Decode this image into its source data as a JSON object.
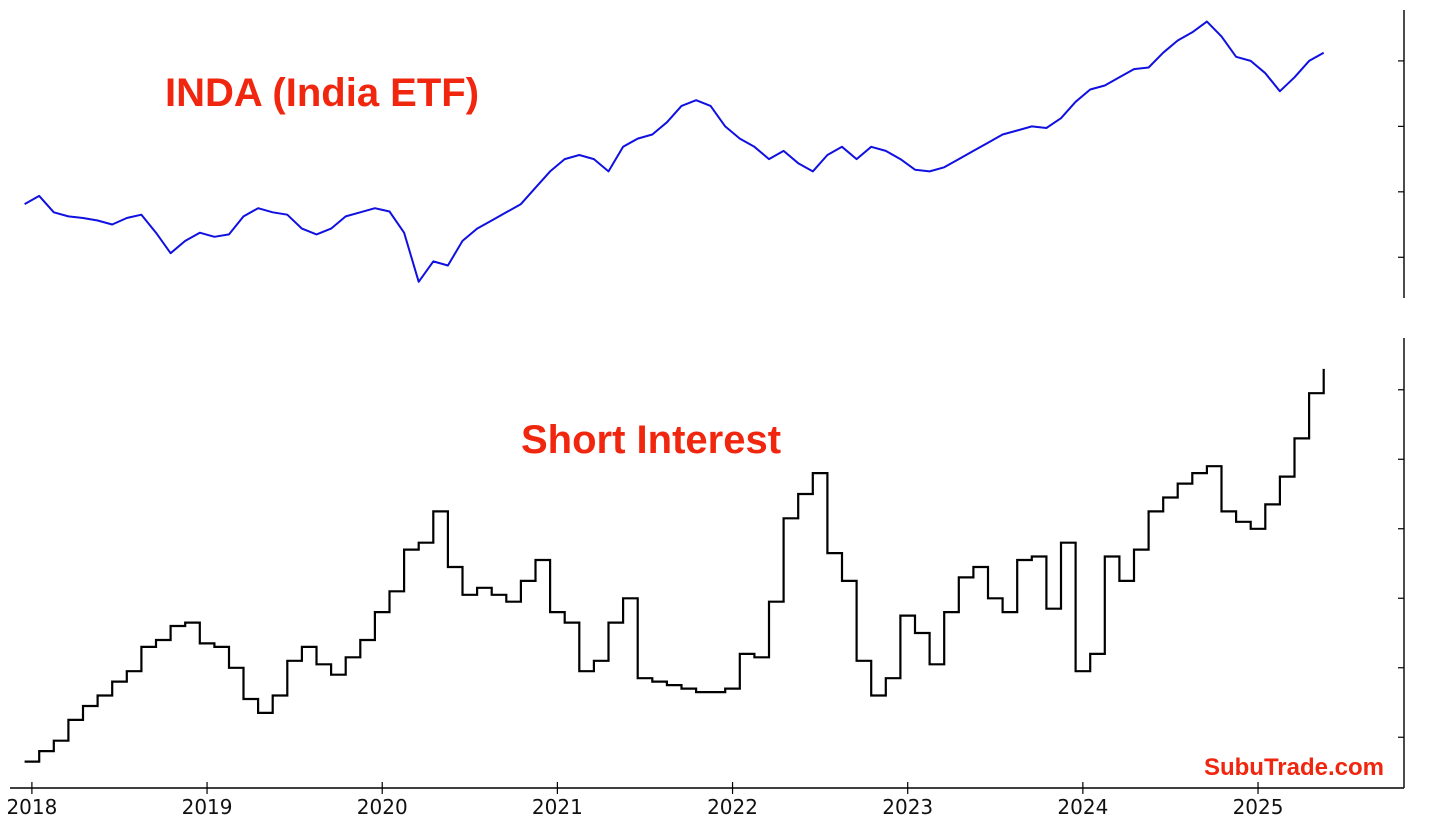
{
  "chart_data": [
    {
      "type": "line",
      "title": "INDA (India ETF)",
      "color": "#1010e0",
      "x": [
        "2017-12",
        "2018-01",
        "2018-02",
        "2018-03",
        "2018-04",
        "2018-05",
        "2018-06",
        "2018-07",
        "2018-08",
        "2018-09",
        "2018-10",
        "2018-11",
        "2018-12",
        "2019-01",
        "2019-02",
        "2019-03",
        "2019-04",
        "2019-05",
        "2019-06",
        "2019-07",
        "2019-08",
        "2019-09",
        "2019-10",
        "2019-11",
        "2019-12",
        "2020-01",
        "2020-02",
        "2020-03",
        "2020-04",
        "2020-05",
        "2020-06",
        "2020-07",
        "2020-08",
        "2020-09",
        "2020-10",
        "2020-11",
        "2020-12",
        "2021-01",
        "2021-02",
        "2021-03",
        "2021-04",
        "2021-05",
        "2021-06",
        "2021-07",
        "2021-08",
        "2021-09",
        "2021-10",
        "2021-11",
        "2021-12",
        "2022-01",
        "2022-02",
        "2022-03",
        "2022-04",
        "2022-05",
        "2022-06",
        "2022-07",
        "2022-08",
        "2022-09",
        "2022-10",
        "2022-11",
        "2022-12",
        "2023-01",
        "2023-02",
        "2023-03",
        "2023-04",
        "2023-05",
        "2023-06",
        "2023-07",
        "2023-08",
        "2023-09",
        "2023-10",
        "2023-11",
        "2023-12",
        "2024-01",
        "2024-02",
        "2024-03",
        "2024-04",
        "2024-05",
        "2024-06",
        "2024-07",
        "2024-08",
        "2024-09",
        "2024-10",
        "2024-11",
        "2024-12",
        "2025-01",
        "2025-02",
        "2025-03",
        "2025-04",
        "2025-05"
      ],
      "values": [
        34.5,
        35.5,
        33.5,
        33.0,
        32.8,
        32.5,
        32.0,
        32.8,
        33.2,
        31.0,
        28.5,
        30.0,
        31.0,
        30.5,
        30.8,
        33.0,
        34.0,
        33.5,
        33.2,
        31.5,
        30.8,
        31.5,
        33.0,
        33.5,
        34.0,
        33.6,
        31.0,
        25.0,
        27.5,
        27.0,
        30.0,
        31.5,
        32.5,
        33.5,
        34.5,
        36.5,
        38.5,
        40.0,
        40.5,
        40.0,
        38.5,
        41.5,
        42.5,
        43.0,
        44.5,
        46.5,
        47.2,
        46.5,
        44.0,
        42.5,
        41.5,
        40.0,
        41.0,
        39.5,
        38.5,
        40.5,
        41.5,
        40.0,
        41.5,
        41.0,
        40.0,
        38.7,
        38.5,
        39.0,
        40.0,
        41.0,
        42.0,
        43.0,
        43.5,
        44.0,
        43.8,
        45.0,
        47.0,
        48.5,
        49.0,
        50.0,
        51.0,
        51.2,
        53.0,
        54.5,
        55.5,
        56.8,
        55.0,
        52.5,
        52.0,
        50.5,
        48.3,
        50.0,
        52.0,
        53.0
      ],
      "ylim": [
        24,
        57
      ],
      "xlabel": "",
      "ylabel": ""
    },
    {
      "type": "line",
      "title": "Short Interest",
      "color": "#000000",
      "step": true,
      "x": [
        "2017-12",
        "2018-01",
        "2018-02",
        "2018-03",
        "2018-04",
        "2018-05",
        "2018-06",
        "2018-07",
        "2018-08",
        "2018-09",
        "2018-10",
        "2018-11",
        "2018-12",
        "2019-01",
        "2019-02",
        "2019-03",
        "2019-04",
        "2019-05",
        "2019-06",
        "2019-07",
        "2019-08",
        "2019-09",
        "2019-10",
        "2019-11",
        "2019-12",
        "2020-01",
        "2020-02",
        "2020-03",
        "2020-04",
        "2020-05",
        "2020-06",
        "2020-07",
        "2020-08",
        "2020-09",
        "2020-10",
        "2020-11",
        "2020-12",
        "2021-01",
        "2021-02",
        "2021-03",
        "2021-04",
        "2021-05",
        "2021-06",
        "2021-07",
        "2021-08",
        "2021-09",
        "2021-10",
        "2021-11",
        "2021-12",
        "2022-01",
        "2022-02",
        "2022-03",
        "2022-04",
        "2022-05",
        "2022-06",
        "2022-07",
        "2022-08",
        "2022-09",
        "2022-10",
        "2022-11",
        "2022-12",
        "2023-01",
        "2023-02",
        "2023-03",
        "2023-04",
        "2023-05",
        "2023-06",
        "2023-07",
        "2023-08",
        "2023-09",
        "2023-10",
        "2023-11",
        "2023-12",
        "2024-01",
        "2024-02",
        "2024-03",
        "2024-04",
        "2024-05",
        "2024-06",
        "2024-07",
        "2024-08",
        "2024-09",
        "2024-10",
        "2024-11",
        "2024-12",
        "2025-01",
        "2025-02",
        "2025-03",
        "2025-04",
        "2025-05"
      ],
      "values": [
        0.3,
        0.6,
        0.9,
        1.5,
        1.9,
        2.2,
        2.6,
        2.9,
        3.6,
        3.8,
        4.2,
        4.3,
        3.7,
        3.6,
        3.0,
        2.1,
        1.7,
        2.2,
        3.2,
        3.6,
        3.1,
        2.8,
        3.3,
        3.8,
        4.6,
        5.2,
        6.4,
        6.6,
        7.5,
        5.9,
        5.1,
        5.3,
        5.1,
        4.9,
        5.5,
        6.1,
        4.6,
        4.3,
        2.9,
        3.2,
        4.3,
        5.0,
        2.7,
        2.6,
        2.5,
        2.4,
        2.3,
        2.3,
        2.4,
        3.4,
        3.3,
        4.9,
        7.3,
        8.0,
        8.6,
        6.3,
        5.5,
        3.2,
        2.2,
        2.7,
        4.5,
        4.0,
        3.1,
        4.6,
        5.6,
        5.9,
        5.0,
        4.6,
        6.1,
        6.2,
        4.7,
        6.6,
        2.9,
        3.4,
        6.2,
        5.5,
        6.4,
        7.5,
        7.9,
        8.3,
        8.6,
        8.8,
        7.5,
        7.2,
        7.0,
        7.7,
        8.5,
        9.6,
        10.9,
        11.6
      ],
      "ylim": [
        0,
        12
      ],
      "xlabel": "",
      "ylabel": ""
    }
  ],
  "x_tick_labels": [
    "2018",
    "2019",
    "2020",
    "2021",
    "2022",
    "2023",
    "2024",
    "2025"
  ],
  "watermark": "SubuTrade.com"
}
